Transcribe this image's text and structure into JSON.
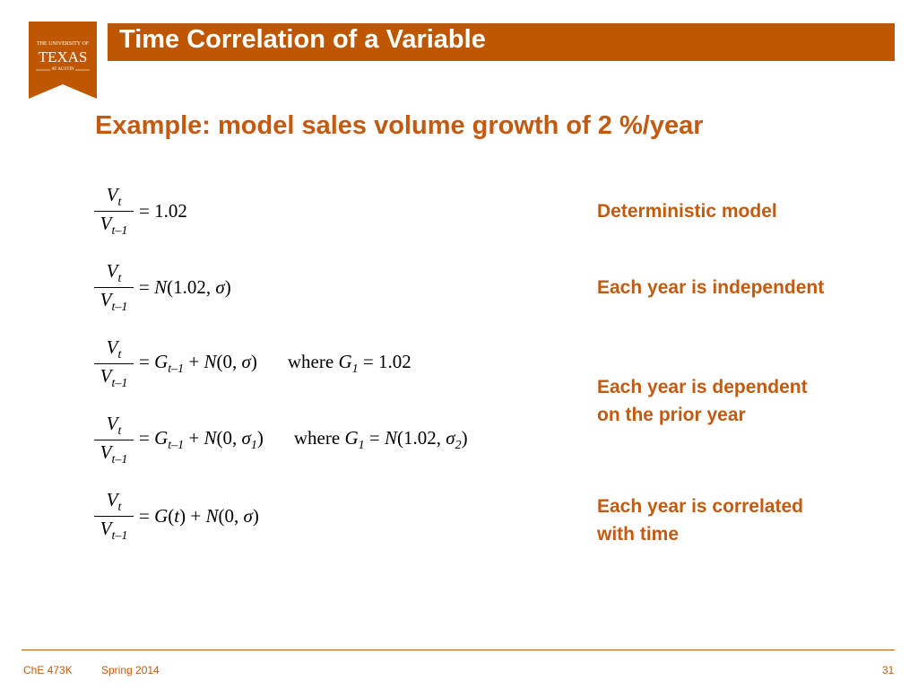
{
  "logo": {
    "lines": [
      "THE UNIVERSITY OF",
      "TEXAS",
      "AT AUSTIN"
    ]
  },
  "header": {
    "title": "Time Correlation of a Variable"
  },
  "subtitle": "Example: model sales volume growth of 2 %/year",
  "equations": [
    {
      "numerator": [
        "V",
        "t"
      ],
      "denominator": [
        "V",
        "t–1"
      ],
      "rhs": [
        "= 1.02"
      ]
    },
    {
      "numerator": [
        "V",
        "t"
      ],
      "denominator": [
        "V",
        "t–1"
      ],
      "rhs": [
        "= ",
        "N",
        "(1.02, ",
        "σ",
        ")"
      ]
    },
    {
      "numerator": [
        "V",
        "t"
      ],
      "denominator": [
        "V",
        "t–1"
      ],
      "rhs": [
        "= ",
        "G",
        "t–1",
        " + ",
        "N",
        "(0, ",
        "σ",
        ")"
      ],
      "where": [
        "where ",
        "G",
        "1",
        " = 1.02"
      ]
    },
    {
      "numerator": [
        "V",
        "t"
      ],
      "denominator": [
        "V",
        "t–1"
      ],
      "rhs": [
        "= ",
        "G",
        "t–1",
        " + ",
        "N",
        "(0, ",
        "σ",
        "1",
        ")"
      ],
      "where": [
        "where ",
        "G",
        "1",
        " = ",
        "N",
        "(1.02, ",
        "σ",
        "2",
        ")"
      ]
    },
    {
      "numerator": [
        "V",
        "t"
      ],
      "denominator": [
        "V",
        "t–1"
      ],
      "rhs": [
        "= ",
        "G",
        "(",
        "t",
        ") + ",
        "N",
        "(0, ",
        "σ",
        ")"
      ]
    }
  ],
  "descriptions": [
    [
      "Deterministic model"
    ],
    [
      "Each year is independent"
    ],
    [
      "Each year is dependent",
      "on the prior year"
    ],
    [
      "Each year is correlated",
      "with time"
    ]
  ],
  "footer": {
    "course": "ChE 473K",
    "term": "Spring 2014",
    "page": "31"
  }
}
